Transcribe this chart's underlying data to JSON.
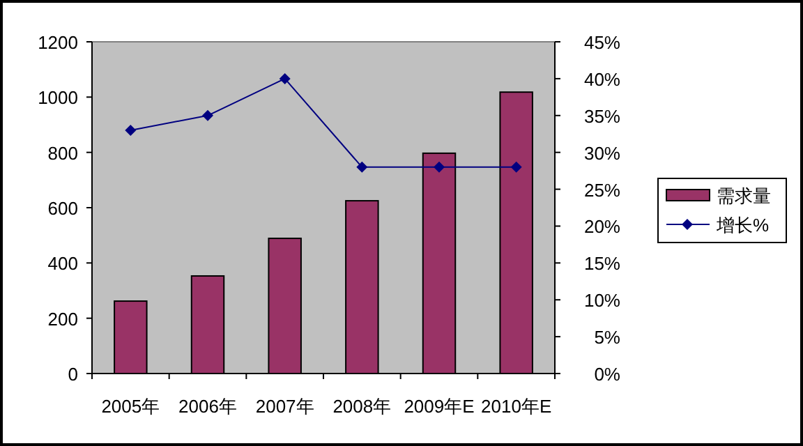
{
  "chart_data": {
    "type": "bar",
    "categories": [
      "2005年",
      "2006年",
      "2007年",
      "2008年",
      "2009年E",
      "2010年E"
    ],
    "series": [
      {
        "name": "需求量",
        "color": "#993366",
        "values": [
          262,
          353,
          489,
          625,
          797,
          1018
        ]
      },
      {
        "name": "增长%",
        "type": "line",
        "axis": "y2",
        "color": "#000080",
        "values": [
          33,
          35,
          40,
          28,
          28,
          28
        ]
      }
    ],
    "marker": "diamond",
    "line_style": "solid",
    "grid": false,
    "legend": "right",
    "ylim": [
      0,
      1200
    ],
    "yticks": [
      0,
      200,
      400,
      600,
      800,
      1000,
      1200
    ],
    "y2lim": [
      0,
      45
    ],
    "y2ticks": [
      {
        "value": 0,
        "label": "0%"
      },
      {
        "value": 5,
        "label": "5%"
      },
      {
        "value": 10,
        "label": "10%"
      },
      {
        "value": 15,
        "label": "15%"
      },
      {
        "value": 20,
        "label": "20%"
      },
      {
        "value": 25,
        "label": "25%"
      },
      {
        "value": 30,
        "label": "30%"
      },
      {
        "value": 35,
        "label": "35%"
      },
      {
        "value": 40,
        "label": "40%"
      },
      {
        "value": 45,
        "label": "45%"
      }
    ]
  }
}
